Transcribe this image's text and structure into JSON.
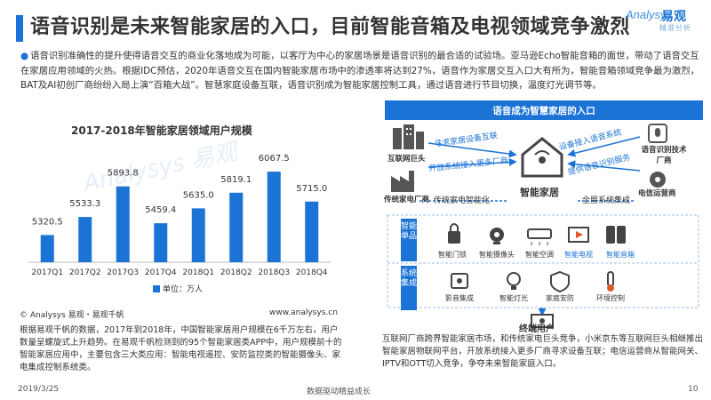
{
  "header": {
    "title": "语音识别是未来智能家居的入口，目前智能音箱及电视领域竞争激烈",
    "logo_en": "Analysys",
    "logo_cn": "易观",
    "logo_sub": "精准分析"
  },
  "intro": {
    "text": "语音识别准确性的提升使得语音交互的商业化落地成为可能，以客厅为中心的家居场景是语音识别的最合适的试验场。亚马逊Echo智能音箱的面世，带动了语音交互在家居应用领域的火热。根据IDC预估，2020年语音交互在国内智能家居市场中的渗透率将达到27%，语音作为家居交互入口大有所为，智能音箱领域竞争最为激烈，BAT及AI初创厂商纷纷入局上演“百箱大战”。智慧家庭设备互联，语音识别成为智能家居控制工具，通过语音进行节目切换，温度灯光调节等。"
  },
  "chart_data": {
    "type": "bar",
    "title": "2017-2018年智能家居领域用户规模",
    "categories": [
      "2017Q1",
      "2017Q2",
      "2017Q3",
      "2017Q4",
      "2018Q1",
      "2018Q2",
      "2018Q3",
      "2018Q4"
    ],
    "values": [
      5320.5,
      5533.3,
      5893.8,
      5459.4,
      5635.0,
      5819.1,
      6067.5,
      5715.0
    ],
    "value_labels": [
      "5320.5",
      "5533.3",
      "5893.8",
      "5459.4",
      "5635.0",
      "5819.1",
      "6067.5",
      "5715.0"
    ],
    "legend": "单位：万人",
    "color": "#1b73d6",
    "watermark": "Analysys 易观"
  },
  "chart_source": {
    "left": "© Analysys 易观・易观千帆",
    "right": "www.analysys.cn"
  },
  "left_text": "根据易观千帆的数据，2017年到2018年，中国智能家居用户规模在6千万左右，用户数量呈螺旋式上升趋势。在易观千帆检测到的95个智能家居类APP中，用户规模前十的智能家居应用中，主要包含三大类应用：智能电视遥控、安防监控类的智能摄像头、家电集成控制系统类。",
  "diagram": {
    "header": "语音成为智慧家居的入口",
    "nodes": {
      "internet": "互联网巨头",
      "traditional": "传统家电厂商",
      "voice_vendor": "语音识别技术厂商",
      "telecom": "电信运营商",
      "center": "智能家居",
      "terminal": "终端用户"
    },
    "arrows": {
      "a1": "寻求家居设备互联",
      "a2": "开放系统接入更多厂商",
      "a3": "设备接入语音系统",
      "a4": "提供语音识别服务",
      "a5": "传统家电智能化",
      "a6": "全屋系统集成"
    },
    "row1_label": "智能单品",
    "row2_label": "系统集成",
    "row1": [
      "智能门锁",
      "智能摄像头",
      "智能空调",
      "智能电视",
      "智能音箱"
    ],
    "row2": [
      "影音集成",
      "智能灯光",
      "家庭安防",
      "环境控制"
    ]
  },
  "right_text": "互联网厂商跨界智能家居市场，和传统家电巨头竞争，小米京东等互联网巨头相继推出智能家居物联网平台，开放系统接入更多厂商寻求设备互联；电信运营商从智能网关、IPTV和OTT切入竞争，争夺未来智能家庭入口。",
  "footer": {
    "date": "2019/3/25",
    "center": "数据驱动精益成长",
    "page": "10"
  }
}
